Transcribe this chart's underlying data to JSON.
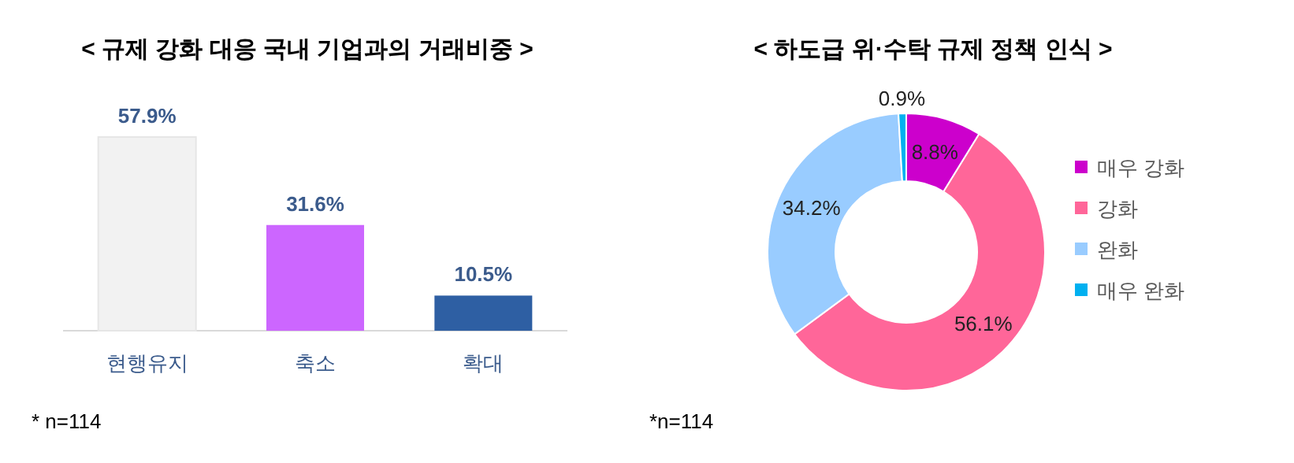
{
  "chart_data": [
    {
      "type": "bar",
      "title": "< 규제 강화 대응 국내 기업과의 거래비중 >",
      "categories": [
        "현행유지",
        "축소",
        "확대"
      ],
      "values": [
        57.9,
        31.6,
        10.5
      ],
      "colors": [
        "#f2f2f2",
        "#cc66ff",
        "#2e5fa3"
      ],
      "value_labels": [
        "57.9%",
        "31.6%",
        "10.5%"
      ],
      "annotations": [
        "* n=114"
      ]
    },
    {
      "type": "donut",
      "title": "< 하도급 위·수탁 규제 정책 인식 >",
      "categories": [
        "매우 강화",
        "강화",
        "완화",
        "매우 완화"
      ],
      "values": [
        8.8,
        56.1,
        34.2,
        0.9
      ],
      "colors": [
        "#cc00cc",
        "#ff6699",
        "#99ccff",
        "#00b0f0"
      ],
      "value_labels": [
        "8.8%",
        "56.1%",
        "34.2%",
        "0.9%"
      ],
      "legend": "right",
      "annotations": [
        "*n=114"
      ]
    }
  ]
}
